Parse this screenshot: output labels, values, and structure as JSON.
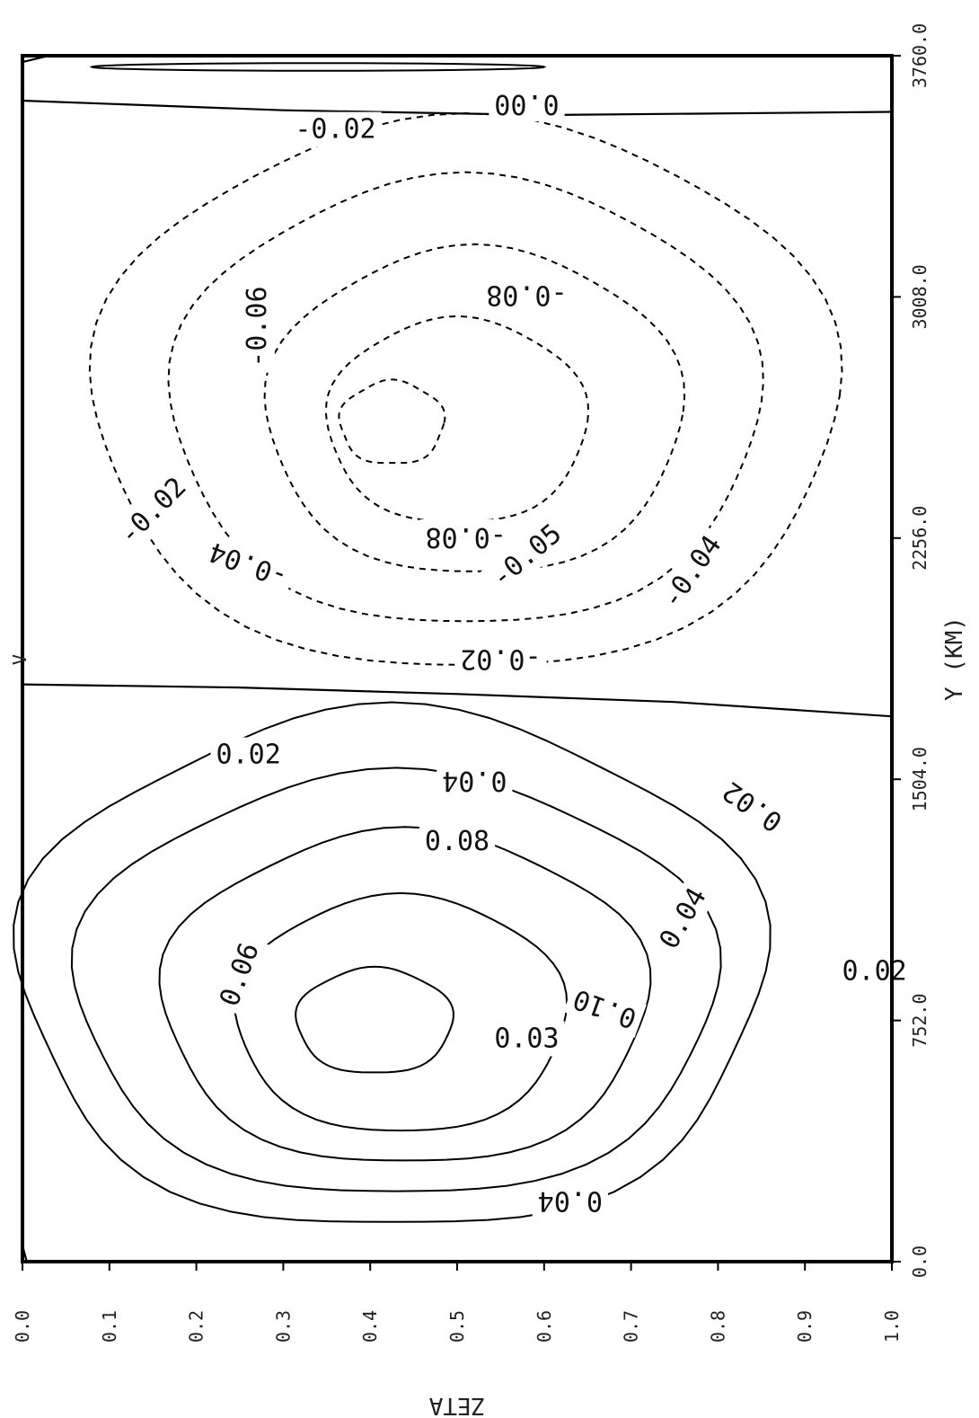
{
  "chart_data": {
    "type": "contour",
    "xlabel": "Y (KM)",
    "ylabel": "ZETA",
    "x_ticks": [
      "0.0",
      "752.0",
      "1504.0",
      "2256.0",
      "3008.0",
      "3760.0"
    ],
    "y_ticks": [
      "0.0",
      "0.1",
      "0.2",
      "0.3",
      "0.4",
      "0.5",
      "0.6",
      "0.7",
      "0.8",
      "0.9",
      "1.0"
    ],
    "xlim": [
      0,
      3760
    ],
    "ylim": [
      0,
      1
    ],
    "corner_label": "V",
    "contour_levels": [
      {
        "level": "0.00",
        "style": "solid"
      },
      {
        "level": "0.02",
        "style": "solid"
      },
      {
        "level": "0.04",
        "style": "solid"
      },
      {
        "level": "0.06",
        "style": "solid"
      },
      {
        "level": "0.08",
        "style": "solid"
      },
      {
        "level": "0.10",
        "style": "solid"
      },
      {
        "level": "-0.02",
        "style": "dashed"
      },
      {
        "level": "-0.04",
        "style": "dashed"
      },
      {
        "level": "-0.06",
        "style": "dashed"
      },
      {
        "level": "-0.08",
        "style": "dashed"
      }
    ],
    "contour_labels": [
      "0.00",
      "-0.02",
      "-0.08",
      "-0.06",
      "-0.02",
      "-0.08",
      "-0.05",
      "-0.04",
      "-0.04",
      "-0.02",
      "0.02",
      "0.04",
      "0.02",
      "0.08",
      "0.04",
      "0.06",
      "0.10",
      "0.02",
      "0.03",
      "0.04"
    ]
  }
}
